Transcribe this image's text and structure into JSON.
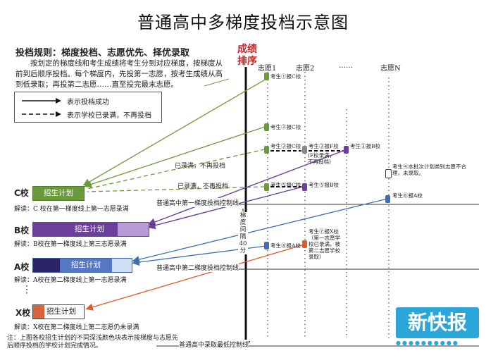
{
  "title": "普通高中多梯度投档示意图",
  "rules": {
    "heading": "投档规则：梯度投档、志愿优先、择优录取",
    "body": "按划定的梯度线和考生成绩将考生分到对应梯度，按梯度从前到后顺序投档。每个梯度内，先投第一志愿，按考生成绩从高到低录取；再投第二志愿……直至投完最末志愿。"
  },
  "legend": {
    "solid": "表示投档成功",
    "dashed": "表示学校已录满，不再投档"
  },
  "axis": {
    "label_line1": "成绩",
    "label_line2": "排序"
  },
  "volunteers": {
    "v1": "志愿1",
    "v2": "志愿2",
    "dots": "……",
    "vn": "志愿N"
  },
  "schools": {
    "c": {
      "label": "C校",
      "plan": "招生计划",
      "note": "解读：C 校在第一梯度线上第一志愿录满",
      "color": "#6a9a3c"
    },
    "b": {
      "label": "B校",
      "plan": "招生计划",
      "note": "解读：B校在第一梯度线上第三志愿录满",
      "color": "#6b3f9a"
    },
    "a": {
      "label": "A校",
      "plan": "招生计划",
      "note": "解读：A校在第二梯度线上第一志愿录满",
      "color": "#3d5f9f"
    },
    "dots": "⋮",
    "x": {
      "label": "X校",
      "plan": "招生计划",
      "note": "解读：X校在第二梯度线上第二志愿仍未录满",
      "color": "#d8643a"
    }
  },
  "lines": {
    "line1": "普通高中第一梯度投档控制线",
    "line2": "普通高中第二梯度投档控制线",
    "min": "普通高中录取最低控制线"
  },
  "gradient_note": [
    "梯",
    "度",
    "间",
    "隔",
    "40",
    "分"
  ],
  "students": {
    "s1": "考生①报C校",
    "s2": "考生②报C校",
    "s3a": "考生③报C校",
    "s3b": "考生③报F校",
    "s3b_note": "(F校录满，不再投档)",
    "s3c": "考生③报B校",
    "s5a": "考生⑤报C校",
    "s5b": "考生⑤报B校",
    "s4": "考生④本批次计划类别志愿不合理，未录取。",
    "s6": "考生⑥报A校",
    "s8": "考生⑧报A校",
    "s7": "考生⑦报X校（第一志愿学校已录满，被第二志愿学校录取）"
  },
  "arrow_labels": {
    "full1": "已录满，不再投档",
    "full2": "已录满，不再投档"
  },
  "note": "注：上图各校招生计划的不同深浅颜色块表示按梯度与志愿先后顺序投档的学校计划完成情况。",
  "watermark": {
    "text": "新快报",
    "dots": "●●●●●●●●●●"
  }
}
